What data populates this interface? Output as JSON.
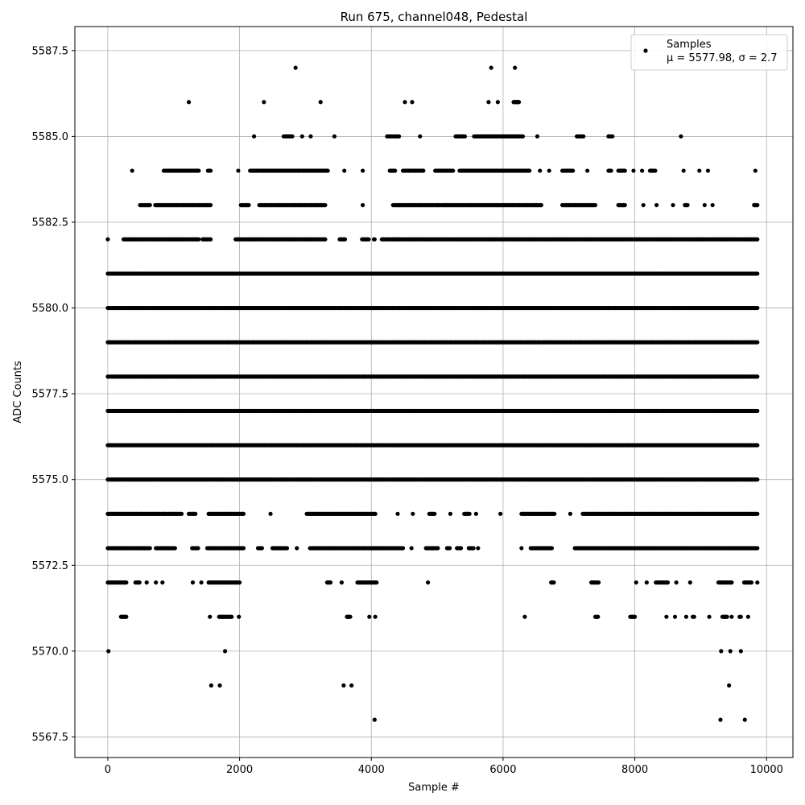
{
  "chart_data": {
    "type": "scatter",
    "title": "Run 675, channel048, Pedestal",
    "xlabel": "Sample #",
    "ylabel": "ADC Counts",
    "xlim": [
      -500,
      10400
    ],
    "ylim": [
      5566.9,
      5588.2
    ],
    "xticks": [
      0,
      2000,
      4000,
      6000,
      8000,
      10000
    ],
    "xtick_labels": [
      "0",
      "2000",
      "4000",
      "6000",
      "8000",
      "10000"
    ],
    "yticks": [
      5567.5,
      5570.0,
      5572.5,
      5575.0,
      5577.5,
      5580.0,
      5582.5,
      5585.0,
      5587.5
    ],
    "ytick_labels": [
      "5567.5",
      "5570.0",
      "5572.5",
      "5575.0",
      "5577.5",
      "5580.0",
      "5582.5",
      "5585.0",
      "5587.5"
    ],
    "grid": true,
    "legend": {
      "placement": "top-right",
      "label": "Samples",
      "stats_text": "μ = 5577.98, σ = 2.7"
    },
    "series": [
      {
        "color": "#000000",
        "marker": "circle",
        "levels": [
          {
            "y": 5587,
            "ranges": [
              [
                2850,
                2850
              ],
              [
                5820,
                5820
              ],
              [
                6180,
                6180
              ]
            ]
          },
          {
            "y": 5586,
            "ranges": [
              [
                1230,
                1230
              ],
              [
                2370,
                2370
              ],
              [
                3230,
                3230
              ],
              [
                4510,
                4510
              ],
              [
                4620,
                4620
              ],
              [
                5780,
                5780
              ],
              [
                5920,
                5920
              ],
              [
                6160,
                6240
              ]
            ]
          },
          {
            "y": 5585,
            "ranges": [
              [
                2220,
                2220
              ],
              [
                2670,
                2800
              ],
              [
                2950,
                2950
              ],
              [
                3080,
                3080
              ],
              [
                3440,
                3440
              ],
              [
                4240,
                4420
              ],
              [
                4740,
                4740
              ],
              [
                5280,
                5420
              ],
              [
                5560,
                6300
              ],
              [
                6520,
                6520
              ],
              [
                7120,
                7220
              ],
              [
                7600,
                7660
              ],
              [
                8700,
                8700
              ]
            ]
          },
          {
            "y": 5584,
            "ranges": [
              [
                370,
                370
              ],
              [
                850,
                1380
              ],
              [
                1520,
                1560
              ],
              [
                1980,
                1980
              ],
              [
                2160,
                3340
              ],
              [
                3590,
                3590
              ],
              [
                3870,
                3870
              ],
              [
                4280,
                4360
              ],
              [
                4480,
                4790
              ],
              [
                4970,
                5240
              ],
              [
                5340,
                6400
              ],
              [
                6560,
                6560
              ],
              [
                6700,
                6700
              ],
              [
                6900,
                7060
              ],
              [
                7280,
                7280
              ],
              [
                7600,
                7640
              ],
              [
                7750,
                7850
              ],
              [
                7980,
                7980
              ],
              [
                8110,
                8110
              ],
              [
                8230,
                8310
              ],
              [
                8740,
                8740
              ],
              [
                8980,
                8980
              ],
              [
                9110,
                9110
              ],
              [
                9830,
                9830
              ]
            ]
          },
          {
            "y": 5583,
            "ranges": [
              [
                490,
                640
              ],
              [
                720,
                1560
              ],
              [
                2020,
                2140
              ],
              [
                2300,
                3300
              ],
              [
                3870,
                3870
              ],
              [
                4330,
                6580
              ],
              [
                6900,
                7400
              ],
              [
                7750,
                7850
              ],
              [
                8130,
                8130
              ],
              [
                8330,
                8330
              ],
              [
                8580,
                8580
              ],
              [
                8760,
                8800
              ],
              [
                9060,
                9060
              ],
              [
                9180,
                9180
              ],
              [
                9810,
                9860
              ]
            ]
          },
          {
            "y": 5582,
            "ranges": [
              [
                0,
                0
              ],
              [
                240,
                1380
              ],
              [
                1440,
                1560
              ],
              [
                1940,
                3300
              ],
              [
                3520,
                3600
              ],
              [
                3860,
                3960
              ],
              [
                4040,
                4050
              ],
              [
                4160,
                9860
              ]
            ]
          },
          {
            "y": 5581,
            "ranges": [
              [
                0,
                9860
              ]
            ]
          },
          {
            "y": 5580,
            "ranges": [
              [
                0,
                9860
              ]
            ]
          },
          {
            "y": 5579,
            "ranges": [
              [
                0,
                9860
              ]
            ]
          },
          {
            "y": 5578,
            "ranges": [
              [
                0,
                9860
              ]
            ]
          },
          {
            "y": 5577,
            "ranges": [
              [
                0,
                9860
              ]
            ]
          },
          {
            "y": 5576,
            "ranges": [
              [
                0,
                9860
              ]
            ]
          },
          {
            "y": 5575,
            "ranges": [
              [
                0,
                9860
              ]
            ]
          },
          {
            "y": 5574,
            "ranges": [
              [
                0,
                1120
              ],
              [
                1230,
                1330
              ],
              [
                1530,
                2060
              ],
              [
                2470,
                2470
              ],
              [
                3020,
                4060
              ],
              [
                4400,
                4400
              ],
              [
                4630,
                4630
              ],
              [
                4880,
                4960
              ],
              [
                5200,
                5200
              ],
              [
                5410,
                5490
              ],
              [
                5590,
                5590
              ],
              [
                5960,
                5960
              ],
              [
                6280,
                6780
              ],
              [
                7020,
                7020
              ],
              [
                7210,
                9860
              ]
            ]
          },
          {
            "y": 5573,
            "ranges": [
              [
                0,
                640
              ],
              [
                730,
                1020
              ],
              [
                1280,
                1370
              ],
              [
                1510,
                2060
              ],
              [
                2280,
                2340
              ],
              [
                2500,
                2720
              ],
              [
                2870,
                2870
              ],
              [
                3070,
                4480
              ],
              [
                4610,
                4610
              ],
              [
                4830,
                5010
              ],
              [
                5150,
                5190
              ],
              [
                5300,
                5360
              ],
              [
                5480,
                5550
              ],
              [
                5620,
                5620
              ],
              [
                6280,
                6280
              ],
              [
                6420,
                6740
              ],
              [
                7090,
                9860
              ]
            ]
          },
          {
            "y": 5572,
            "ranges": [
              [
                0,
                280
              ],
              [
                420,
                480
              ],
              [
                590,
                590
              ],
              [
                730,
                730
              ],
              [
                830,
                830
              ],
              [
                1290,
                1290
              ],
              [
                1420,
                1420
              ],
              [
                1530,
                2000
              ],
              [
                3330,
                3380
              ],
              [
                3550,
                3550
              ],
              [
                3790,
                4080
              ],
              [
                4860,
                4860
              ],
              [
                6730,
                6770
              ],
              [
                7340,
                7450
              ],
              [
                8020,
                8020
              ],
              [
                8180,
                8180
              ],
              [
                8320,
                8500
              ],
              [
                8630,
                8630
              ],
              [
                8840,
                8840
              ],
              [
                9270,
                9470
              ],
              [
                9660,
                9770
              ],
              [
                9860,
                9860
              ]
            ]
          },
          {
            "y": 5571,
            "ranges": [
              [
                200,
                280
              ],
              [
                1550,
                1550
              ],
              [
                1690,
                1880
              ],
              [
                1990,
                1990
              ],
              [
                3630,
                3680
              ],
              [
                3970,
                3970
              ],
              [
                4060,
                4060
              ],
              [
                6330,
                6330
              ],
              [
                7400,
                7440
              ],
              [
                7930,
                8000
              ],
              [
                8480,
                8480
              ],
              [
                8610,
                8610
              ],
              [
                8780,
                8780
              ],
              [
                8880,
                8900
              ],
              [
                9130,
                9130
              ],
              [
                9330,
                9400
              ],
              [
                9470,
                9470
              ],
              [
                9590,
                9610
              ],
              [
                9720,
                9720
              ]
            ]
          },
          {
            "y": 5570,
            "ranges": [
              [
                10,
                10
              ],
              [
                1780,
                1780
              ],
              [
                9310,
                9310
              ],
              [
                9450,
                9450
              ],
              [
                9610,
                9610
              ]
            ]
          },
          {
            "y": 5569,
            "ranges": [
              [
                1570,
                1570
              ],
              [
                1700,
                1700
              ],
              [
                3580,
                3580
              ],
              [
                3700,
                3700
              ],
              [
                9430,
                9430
              ]
            ]
          },
          {
            "y": 5568,
            "ranges": [
              [
                4050,
                4050
              ],
              [
                9300,
                9300
              ],
              [
                9670,
                9670
              ]
            ]
          }
        ]
      }
    ]
  }
}
